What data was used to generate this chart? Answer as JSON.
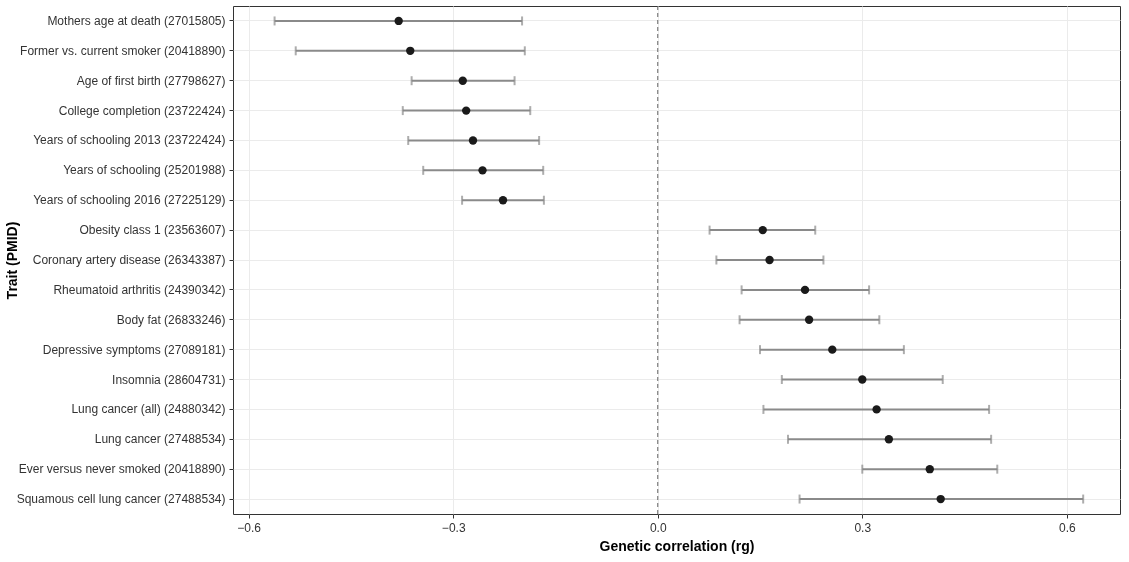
{
  "chart_data": {
    "type": "scatter",
    "xlabel": "Genetic correlation (rg)",
    "ylabel": "Trait (PMID)",
    "categories": [
      "Mothers age at death (27015805)",
      "Former vs. current smoker (20418890)",
      "Age of first birth (27798627)",
      "College completion (23722424)",
      "Years of schooling 2013 (23722424)",
      "Years of schooling (25201988)",
      "Years of schooling 2016 (27225129)",
      "Obesity class 1 (23563607)",
      "Coronary artery disease (26343387)",
      "Rheumatoid arthritis (24390342)",
      "Body fat (26833246)",
      "Depressive symptoms (27089181)",
      "Insomnia (28604731)",
      "Lung cancer (all) (24880342)",
      "Lung cancer (27488534)",
      "Ever versus never smoked (20418890)",
      "Squamous cell lung cancer (27488534)"
    ],
    "orientation": "horizontal",
    "series": [
      {
        "color": "#1a1a1a",
        "values": [
          -0.38,
          -0.363,
          -0.286,
          -0.281,
          -0.271,
          -0.257,
          -0.227,
          0.154,
          0.164,
          0.216,
          0.222,
          0.256,
          0.3,
          0.321,
          0.339,
          0.399,
          0.415
        ],
        "errors": [
          [
            -0.562,
            -0.199
          ],
          [
            -0.531,
            -0.195
          ],
          [
            -0.361,
            -0.21
          ],
          [
            -0.374,
            -0.187
          ],
          [
            -0.366,
            -0.174
          ],
          [
            -0.344,
            -0.168
          ],
          [
            -0.287,
            -0.167
          ],
          [
            0.076,
            0.231
          ],
          [
            0.086,
            0.243
          ],
          [
            0.123,
            0.31
          ],
          [
            0.12,
            0.325
          ],
          [
            0.15,
            0.361
          ],
          [
            0.182,
            0.418
          ],
          [
            0.155,
            0.486
          ],
          [
            0.191,
            0.489
          ],
          [
            0.3,
            0.498
          ],
          [
            0.208,
            0.624
          ]
        ]
      }
    ],
    "xlim": [
      -0.623,
      0.678
    ],
    "xticks": [
      {
        "value": -0.6,
        "label": "−0.6"
      },
      {
        "value": -0.3,
        "label": "−0.3"
      },
      {
        "value": 0,
        "label": "0.0"
      },
      {
        "value": 0.3,
        "label": "0.3"
      },
      {
        "value": 0.6,
        "label": "0.6"
      }
    ],
    "ref_lines": [
      {
        "axis": "x",
        "value": 0,
        "color": "#666666",
        "line_style": "dashed"
      }
    ],
    "grid": true,
    "marker": "circle",
    "legend": false
  }
}
